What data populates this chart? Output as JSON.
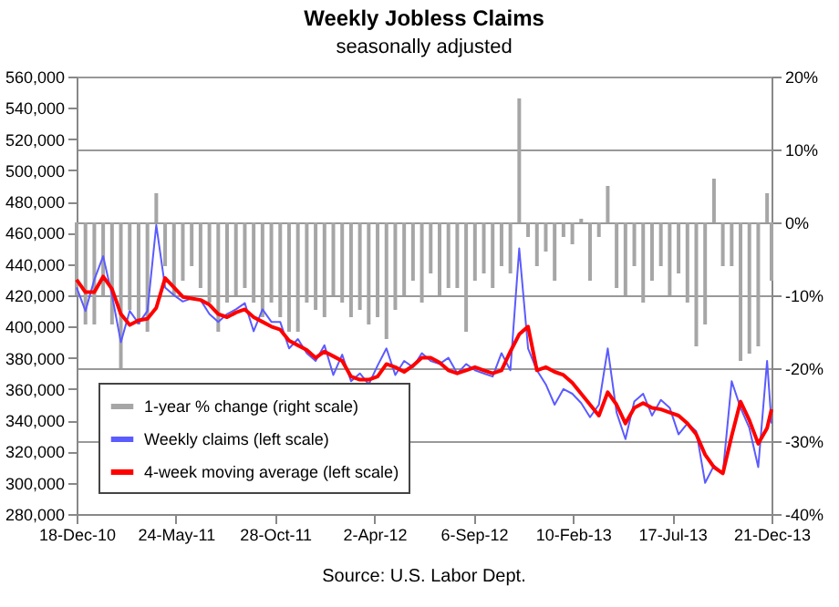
{
  "chart_data": {
    "type": "line",
    "title": "Weekly Jobless Claims",
    "subtitle": "seasonally adjusted",
    "annotations": [
      "Source: U.S. Labor Dept."
    ],
    "x": [
      "2010-12-18",
      "2011-01-01",
      "2011-01-15",
      "2011-01-29",
      "2011-02-12",
      "2011-02-26",
      "2011-03-12",
      "2011-03-26",
      "2011-04-09",
      "2011-04-23",
      "2011-05-07",
      "2011-05-21",
      "2011-06-04",
      "2011-06-18",
      "2011-07-02",
      "2011-07-16",
      "2011-07-30",
      "2011-08-13",
      "2011-08-27",
      "2011-09-10",
      "2011-09-24",
      "2011-10-08",
      "2011-10-22",
      "2011-11-05",
      "2011-11-19",
      "2011-12-03",
      "2011-12-17",
      "2011-12-31",
      "2012-01-14",
      "2012-01-28",
      "2012-02-11",
      "2012-02-25",
      "2012-03-10",
      "2012-03-24",
      "2012-04-07",
      "2012-04-21",
      "2012-05-05",
      "2012-05-19",
      "2012-06-02",
      "2012-06-16",
      "2012-06-30",
      "2012-07-14",
      "2012-07-28",
      "2012-08-11",
      "2012-08-25",
      "2012-09-08",
      "2012-09-22",
      "2012-10-06",
      "2012-10-20",
      "2012-11-03",
      "2012-11-17",
      "2012-12-01",
      "2012-12-15",
      "2012-12-29",
      "2013-01-12",
      "2013-01-26",
      "2013-02-09",
      "2013-02-23",
      "2013-03-09",
      "2013-03-23",
      "2013-04-06",
      "2013-04-20",
      "2013-05-04",
      "2013-05-18",
      "2013-06-01",
      "2013-06-15",
      "2013-06-29",
      "2013-07-13",
      "2013-07-27",
      "2013-08-10",
      "2013-08-24",
      "2013-09-07",
      "2013-09-21",
      "2013-10-05",
      "2013-10-19",
      "2013-11-02",
      "2013-11-16",
      "2013-11-30",
      "2013-12-14",
      "2013-12-21"
    ],
    "series": [
      {
        "name": "1-year % change (right scale)",
        "type": "bar",
        "axis": "y2",
        "color": "#a6a6a6",
        "values": [
          -10,
          -14,
          -14,
          -10,
          -14,
          -20,
          -12,
          -14,
          -15,
          4,
          -6,
          -10,
          -8,
          -6,
          -9,
          -11,
          -15,
          -11,
          -10,
          -9,
          -11,
          -13,
          -11,
          -13,
          -15,
          -15,
          -11,
          -12,
          -13,
          -10,
          -11,
          -13,
          -12,
          -14,
          -13,
          -16,
          -12,
          -10,
          -8,
          -11,
          -7,
          -10,
          -9,
          -9,
          -15,
          -8,
          -7,
          -9,
          -6,
          -7,
          17,
          -2,
          -6,
          -4,
          -8,
          -2,
          -3,
          0.5,
          -8,
          -2,
          5,
          -9,
          -10,
          -6,
          -11,
          -8,
          -6,
          -10,
          -7,
          -11,
          -17,
          -14,
          6,
          -6,
          -6,
          -19,
          -18,
          -17,
          4,
          -8
        ]
      },
      {
        "name": "Weekly claims (left scale)",
        "color": "#5b5bff",
        "values": [
          425000,
          410000,
          430000,
          445000,
          420000,
          390000,
          410000,
          402000,
          410000,
          465000,
          425000,
          420000,
          416000,
          418000,
          417000,
          408000,
          403000,
          408000,
          411000,
          415000,
          397000,
          411000,
          403000,
          403000,
          386000,
          392000,
          383000,
          378000,
          388000,
          369000,
          382000,
          365000,
          370000,
          363000,
          375000,
          386000,
          369000,
          378000,
          374000,
          383000,
          378000,
          376000,
          380000,
          370000,
          376000,
          372000,
          370000,
          368000,
          383000,
          372000,
          450000,
          386000,
          372000,
          363000,
          350000,
          360000,
          357000,
          351000,
          342000,
          350000,
          386000,
          345000,
          328000,
          352000,
          357000,
          343000,
          353000,
          348000,
          331000,
          338000,
          333000,
          300000,
          311000,
          306000,
          365000,
          348000,
          335000,
          310000,
          378000,
          338000
        ]
      },
      {
        "name": "4-week moving average (left scale)",
        "color": "#ff0000",
        "values": [
          430000,
          422000,
          422000,
          432000,
          424000,
          408000,
          401000,
          404000,
          405000,
          412000,
          431000,
          425000,
          419000,
          418000,
          417000,
          414000,
          408000,
          406000,
          409000,
          411000,
          406000,
          403000,
          400000,
          398000,
          391000,
          388000,
          385000,
          380000,
          384000,
          381000,
          378000,
          368000,
          366000,
          366000,
          368000,
          376000,
          374000,
          371000,
          375000,
          380000,
          380000,
          377000,
          372000,
          370000,
          372000,
          374000,
          372000,
          370000,
          372000,
          384000,
          395000,
          400000,
          372000,
          374000,
          371000,
          369000,
          364000,
          357000,
          350000,
          343000,
          358000,
          350000,
          338000,
          348000,
          351000,
          348000,
          347000,
          345000,
          343000,
          338000,
          331000,
          318000,
          310000,
          306000,
          330000,
          352000,
          340000,
          325000,
          335000,
          347000
        ]
      }
    ],
    "xlim": [
      "2010-12-18",
      "2013-12-21"
    ],
    "xticks": [
      {
        "value": "2010-12-18",
        "label": "18-Dec-10"
      },
      {
        "value": "2011-05-24",
        "label": "24-May-11"
      },
      {
        "value": "2011-10-28",
        "label": "28-Oct-11"
      },
      {
        "value": "2012-04-02",
        "label": "2-Apr-12"
      },
      {
        "value": "2012-09-06",
        "label": "6-Sep-12"
      },
      {
        "value": "2013-02-10",
        "label": "10-Feb-13"
      },
      {
        "value": "2013-07-17",
        "label": "17-Jul-13"
      },
      {
        "value": "2013-12-21",
        "label": "21-Dec-13"
      }
    ],
    "ylim": [
      280000,
      560000
    ],
    "yticks": [
      {
        "value": 280000,
        "label": "280,000"
      },
      {
        "value": 300000,
        "label": "300,000"
      },
      {
        "value": 320000,
        "label": "320,000"
      },
      {
        "value": 340000,
        "label": "340,000"
      },
      {
        "value": 360000,
        "label": "360,000"
      },
      {
        "value": 380000,
        "label": "380,000"
      },
      {
        "value": 400000,
        "label": "400,000"
      },
      {
        "value": 420000,
        "label": "420,000"
      },
      {
        "value": 440000,
        "label": "440,000"
      },
      {
        "value": 460000,
        "label": "460,000"
      },
      {
        "value": 480000,
        "label": "480,000"
      },
      {
        "value": 500000,
        "label": "500,000"
      },
      {
        "value": 520000,
        "label": "520,000"
      },
      {
        "value": 540000,
        "label": "540,000"
      },
      {
        "value": 560000,
        "label": "560,000"
      }
    ],
    "y2lim": [
      -40,
      20
    ],
    "y2ticks": [
      {
        "value": -40,
        "label": "-40%"
      },
      {
        "value": -30,
        "label": "-30%"
      },
      {
        "value": -20,
        "label": "-20%"
      },
      {
        "value": -10,
        "label": "-10%"
      },
      {
        "value": 0,
        "label": "0%"
      },
      {
        "value": 10,
        "label": "10%"
      },
      {
        "value": 20,
        "label": "20%"
      }
    ],
    "grid": "y",
    "legend": "bottom left"
  }
}
